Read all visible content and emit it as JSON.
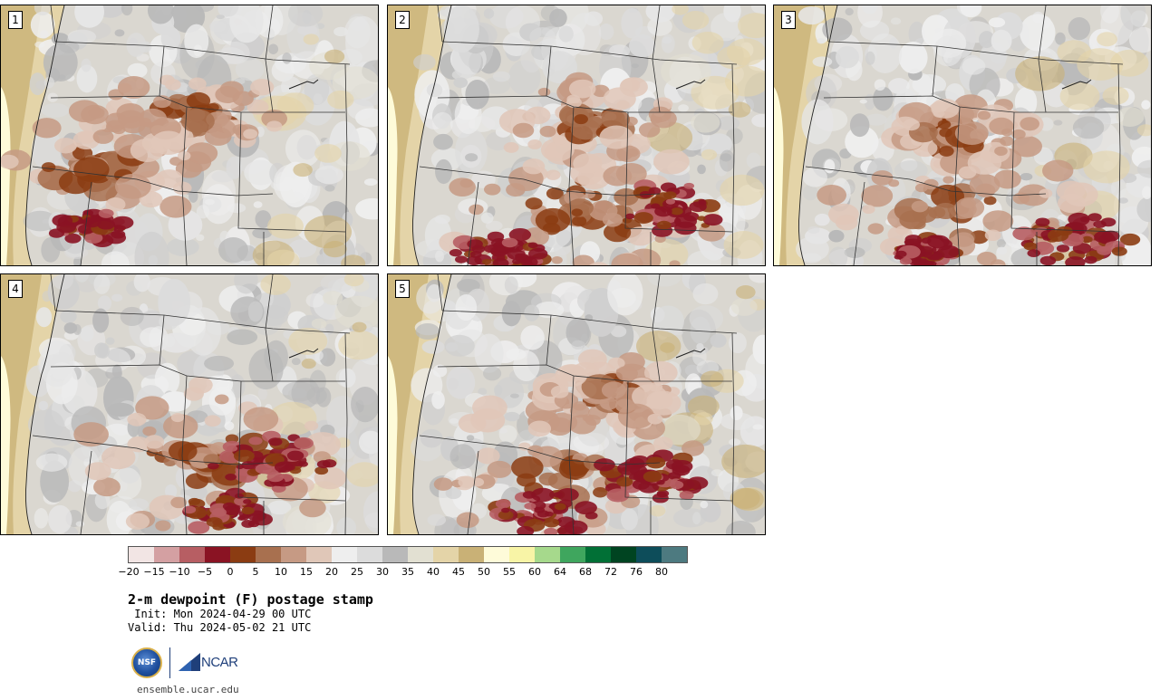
{
  "panels": [
    {
      "label": "1",
      "moist": [
        [
          0.25,
          0.62,
          1.0
        ],
        [
          0.52,
          0.42,
          0.8
        ]
      ],
      "core": [
        [
          0.24,
          0.85,
          0.7
        ]
      ]
    },
    {
      "label": "2",
      "moist": [
        [
          0.5,
          0.8,
          1.3
        ],
        [
          0.55,
          0.45,
          0.7
        ]
      ],
      "core": [
        [
          0.75,
          0.78,
          1.0
        ],
        [
          0.3,
          0.95,
          0.8
        ]
      ]
    },
    {
      "label": "3",
      "moist": [
        [
          0.5,
          0.78,
          1.2
        ],
        [
          0.48,
          0.5,
          0.7
        ]
      ],
      "core": [
        [
          0.8,
          0.9,
          1.0
        ],
        [
          0.4,
          0.95,
          0.6
        ]
      ]
    },
    {
      "label": "4",
      "moist": [
        [
          0.55,
          0.72,
          1.3
        ]
      ],
      "core": [
        [
          0.72,
          0.72,
          1.1
        ],
        [
          0.6,
          0.92,
          0.8
        ]
      ]
    },
    {
      "label": "5",
      "moist": [
        [
          0.5,
          0.75,
          1.3
        ],
        [
          0.6,
          0.45,
          0.6
        ]
      ],
      "core": [
        [
          0.7,
          0.78,
          1.0
        ],
        [
          0.42,
          0.92,
          0.9
        ]
      ]
    }
  ],
  "colorbar": {
    "colors": [
      "#f2e5e4",
      "#d4a0a2",
      "#b75e63",
      "#8a1323",
      "#8b3c12",
      "#a8704f",
      "#c69a84",
      "#e0c7b8",
      "#eeeeee",
      "#dcdcdc",
      "#b9b9b9",
      "#e2e0d2",
      "#e4d4a8",
      "#c9b176",
      "#fefbd9",
      "#f8f4a6",
      "#a6d98c",
      "#3fa65e",
      "#017036",
      "#004421",
      "#0d4d5a",
      "#4d7a80"
    ],
    "ticks": [
      "−20",
      "−15",
      "−10",
      "−5",
      "0",
      "5",
      "10",
      "15",
      "20",
      "25",
      "30",
      "35",
      "40",
      "45",
      "50",
      "55",
      "60",
      "64",
      "68",
      "72",
      "76",
      "80"
    ]
  },
  "title": "2-m dewpoint (F) postage stamp",
  "init": " Init: Mon 2024-04-29 00 UTC",
  "valid": "Valid: Thu 2024-05-02 21 UTC",
  "logos": {
    "nsf": "NSF",
    "ncar": "NCAR"
  },
  "website": "ensemble.ucar.edu"
}
